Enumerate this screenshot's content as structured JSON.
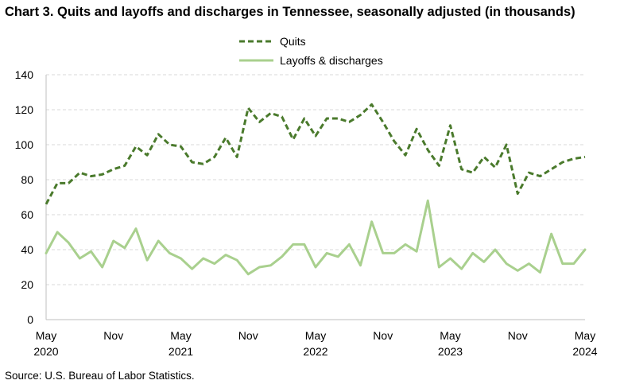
{
  "chart_data": {
    "type": "line",
    "title": "Chart 3. Quits and layoffs and discharges in Tennessee, seasonally adjusted (in thousands)",
    "source": "Source: U.S. Bureau of Labor Statistics.",
    "xlabel": "",
    "ylabel": "",
    "ylim": [
      0,
      140
    ],
    "yticks": [
      0,
      20,
      40,
      60,
      80,
      100,
      120,
      140
    ],
    "grid": "horizontal-dashed",
    "legend_position": "top-center",
    "x_start": "May 2020",
    "x_end": "May 2024",
    "x_tick_labels": [
      {
        "index": 0,
        "month": "May",
        "year": "2020"
      },
      {
        "index": 6,
        "month": "Nov",
        "year": ""
      },
      {
        "index": 12,
        "month": "May",
        "year": "2021"
      },
      {
        "index": 18,
        "month": "Nov",
        "year": ""
      },
      {
        "index": 24,
        "month": "May",
        "year": "2022"
      },
      {
        "index": 30,
        "month": "Nov",
        "year": ""
      },
      {
        "index": 36,
        "month": "May",
        "year": "2023"
      },
      {
        "index": 42,
        "month": "Nov",
        "year": ""
      },
      {
        "index": 48,
        "month": "May",
        "year": "2024"
      }
    ],
    "series": [
      {
        "name": "Quits",
        "style": "dashed",
        "color": "#4a7a2c",
        "values": [
          66,
          78,
          78,
          84,
          82,
          83,
          86,
          88,
          99,
          94,
          106,
          100,
          99,
          90,
          89,
          93,
          104,
          93,
          121,
          113,
          118,
          116,
          103,
          115,
          105,
          115,
          115,
          113,
          117,
          123,
          113,
          102,
          94,
          109,
          97,
          88,
          111,
          86,
          84,
          93,
          87,
          100,
          72,
          84,
          82,
          86,
          90,
          92,
          93
        ]
      },
      {
        "name": "Layoffs & discharges",
        "style": "solid",
        "color": "#a9d08e",
        "values": [
          38,
          50,
          44,
          35,
          39,
          30,
          45,
          41,
          52,
          34,
          45,
          38,
          35,
          29,
          35,
          32,
          37,
          34,
          26,
          30,
          31,
          36,
          43,
          43,
          30,
          38,
          36,
          43,
          31,
          56,
          38,
          38,
          43,
          39,
          68,
          30,
          35,
          29,
          38,
          33,
          40,
          32,
          28,
          32,
          27,
          49,
          32,
          32,
          40
        ]
      }
    ]
  }
}
